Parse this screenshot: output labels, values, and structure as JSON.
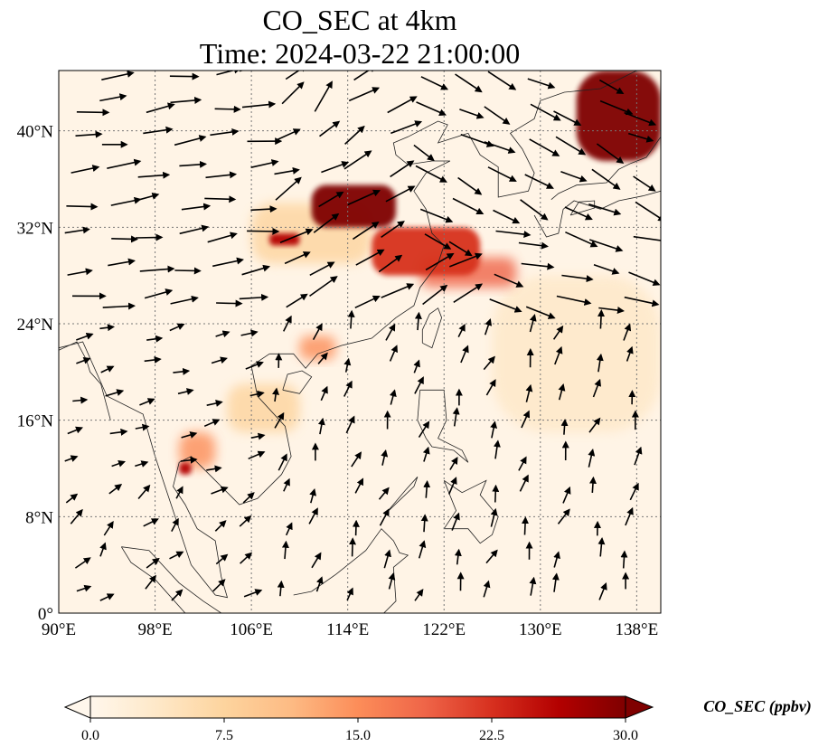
{
  "title_line1": "CO_SEC at 4km",
  "title_line2": "Time: 2024-03-22 21:00:00",
  "map": {
    "lon_range": [
      90,
      140
    ],
    "lat_range": [
      0,
      45
    ],
    "lon_ticks": [
      {
        "value": 90,
        "label": "90°E"
      },
      {
        "value": 98,
        "label": "98°E"
      },
      {
        "value": 106,
        "label": "106°E"
      },
      {
        "value": 114,
        "label": "114°E"
      },
      {
        "value": 122,
        "label": "122°E"
      },
      {
        "value": 130,
        "label": "130°E"
      },
      {
        "value": 138,
        "label": "138°E"
      }
    ],
    "lat_ticks": [
      {
        "value": 0,
        "label": "0°"
      },
      {
        "value": 8,
        "label": "8°N"
      },
      {
        "value": 16,
        "label": "16°N"
      },
      {
        "value": 24,
        "label": "24°N"
      },
      {
        "value": 32,
        "label": "32°N"
      },
      {
        "value": 40,
        "label": "40°N"
      }
    ],
    "gridlines": true,
    "plumes": [
      {
        "lon": [
          133,
          140
        ],
        "lat": [
          37.5,
          45
        ],
        "level": 30
      },
      {
        "lon": [
          111,
          118
        ],
        "lat": [
          32,
          35.5
        ],
        "level": 30
      },
      {
        "lon": [
          107.5,
          110
        ],
        "lat": [
          30.5,
          31.5
        ],
        "level": 28
      },
      {
        "lon": [
          116,
          125
        ],
        "lat": [
          28,
          32
        ],
        "level": 24
      },
      {
        "lon": [
          120,
          128
        ],
        "lat": [
          27,
          29.5
        ],
        "level": 20
      },
      {
        "lon": [
          100,
          101
        ],
        "lat": [
          11.5,
          12.5
        ],
        "level": 26
      },
      {
        "lon": [
          100,
          103
        ],
        "lat": [
          12,
          15
        ],
        "level": 16
      },
      {
        "lon": [
          110,
          113
        ],
        "lat": [
          21,
          23
        ],
        "level": 14
      },
      {
        "lon": [
          104,
          110
        ],
        "lat": [
          15,
          19
        ],
        "level": 8
      },
      {
        "lon": [
          106,
          116
        ],
        "lat": [
          29,
          34
        ],
        "level": 6
      },
      {
        "lon": [
          126,
          140
        ],
        "lat": [
          15,
          28
        ],
        "level": 4
      }
    ],
    "wind_vector_fields": [
      {
        "lon": [
          90,
          108
        ],
        "lat": [
          24,
          45
        ],
        "u": 1,
        "v": 0.12
      },
      {
        "lon": [
          108,
          124
        ],
        "lat": [
          24,
          40
        ],
        "u": 0.85,
        "v": 0.5
      },
      {
        "lon": [
          118,
          140
        ],
        "lat": [
          30,
          45
        ],
        "u": 0.85,
        "v": -0.45
      },
      {
        "lon": [
          124,
          140
        ],
        "lat": [
          24,
          32
        ],
        "u": 0.95,
        "v": -0.25
      },
      {
        "lon": [
          90,
          106
        ],
        "lat": [
          10,
          24
        ],
        "u": 0.95,
        "v": 0.25
      },
      {
        "lon": [
          106,
          140
        ],
        "lat": [
          0,
          24
        ],
        "u": 0.15,
        "v": 0.5
      }
    ]
  },
  "colorbar": {
    "label": "CO_SEC (ppbv)",
    "range": [
      0,
      30
    ],
    "extend": "both",
    "ticks": [
      "0.0",
      "7.5",
      "15.0",
      "22.5",
      "30.0"
    ],
    "colors": [
      "#fff7ec",
      "#fee8c8",
      "#fdd49e",
      "#fdbb84",
      "#fc8d59",
      "#ef6548",
      "#d7301f",
      "#b30000",
      "#7f0000"
    ]
  }
}
